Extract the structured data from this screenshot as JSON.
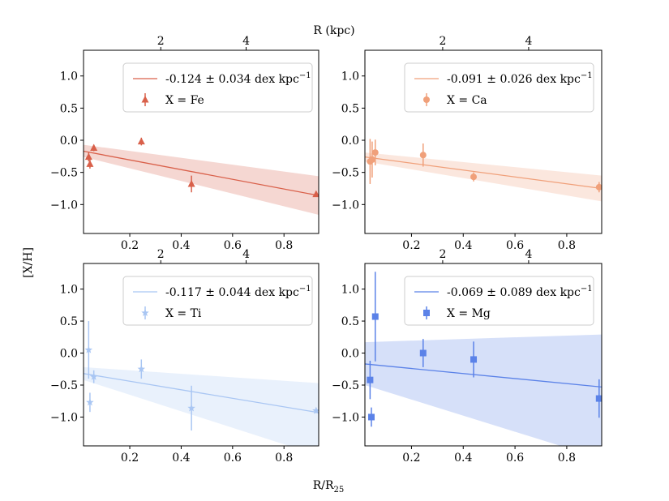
{
  "labels": {
    "top_axis_title": "R (kpc)",
    "y_axis_title": "[X/H]",
    "bottom_axis_title_main": "R/R",
    "bottom_axis_title_sub": "25"
  },
  "chart_data": [
    {
      "type": "scatter",
      "element": "Fe",
      "color": "#d9604a",
      "marker": "triangle",
      "legend_line": "-0.124 ± 0.034 dex kpc",
      "legend_marker": "X = Fe",
      "legend_exp": "−1",
      "x_range": [
        0.02,
        0.935
      ],
      "y_range": [
        -1.45,
        1.4
      ],
      "top_x_range_kpc": [
        0.19,
        5.7
      ],
      "x_ticks": [
        0.2,
        0.4,
        0.6,
        0.8
      ],
      "x_tick_labels": [
        "0.2",
        "0.4",
        "0.6",
        "0.8"
      ],
      "y_ticks": [
        1.0,
        0.5,
        0.0,
        -0.5,
        -1.0
      ],
      "y_tick_labels": [
        "1.0",
        "0.5",
        "0.0",
        "−0.5",
        "−1.0"
      ],
      "top_ticks": [
        2,
        4
      ],
      "top_tick_labels": [
        "2",
        "4"
      ],
      "fit": {
        "x": [
          0.02,
          0.935
        ],
        "y": [
          -0.17,
          -0.86
        ]
      },
      "band": {
        "upper": [
          -0.07,
          -0.56
        ],
        "lower": [
          -0.26,
          -1.16
        ]
      },
      "points": [
        {
          "x": 0.04,
          "y": -0.26,
          "err": 0.07
        },
        {
          "x": 0.045,
          "y": -0.37,
          "err": 0.07
        },
        {
          "x": 0.06,
          "y": -0.12,
          "err": 0.05
        },
        {
          "x": 0.245,
          "y": -0.02,
          "err": 0.06
        },
        {
          "x": 0.44,
          "y": -0.68,
          "err": 0.13
        },
        {
          "x": 0.925,
          "y": -0.84,
          "err": 0.04
        }
      ]
    },
    {
      "type": "scatter",
      "element": "Ca",
      "color": "#f0a07a",
      "marker": "circle",
      "legend_line": "-0.091 ± 0.026 dex kpc",
      "legend_marker": "X = Ca",
      "legend_exp": "−1",
      "x_range": [
        0.02,
        0.935
      ],
      "y_range": [
        -1.45,
        1.4
      ],
      "top_x_range_kpc": [
        0.19,
        5.7
      ],
      "x_ticks": [
        0.2,
        0.4,
        0.6,
        0.8
      ],
      "x_tick_labels": [
        "0.2",
        "0.4",
        "0.6",
        "0.8"
      ],
      "y_ticks": [
        1.0,
        0.5,
        0.0,
        -0.5,
        -1.0
      ],
      "y_tick_labels": [
        "1.0",
        "0.5",
        "0.0",
        "−0.5",
        "−1.0"
      ],
      "top_ticks": [
        2,
        4
      ],
      "top_tick_labels": [
        "2",
        "4"
      ],
      "fit": {
        "x": [
          0.02,
          0.935
        ],
        "y": [
          -0.26,
          -0.75
        ]
      },
      "band": {
        "upper": [
          -0.19,
          -0.55
        ],
        "lower": [
          -0.33,
          -0.95
        ]
      },
      "points": [
        {
          "x": 0.04,
          "y": -0.33,
          "err": 0.35
        },
        {
          "x": 0.048,
          "y": -0.3,
          "err": 0.28
        },
        {
          "x": 0.06,
          "y": -0.19,
          "err": 0.2
        },
        {
          "x": 0.245,
          "y": -0.23,
          "err": 0.18
        },
        {
          "x": 0.44,
          "y": -0.57,
          "err": 0.07
        },
        {
          "x": 0.925,
          "y": -0.73,
          "err": 0.08
        }
      ]
    },
    {
      "type": "scatter",
      "element": "Ti",
      "color": "#a9c6f3",
      "marker": "star",
      "legend_line": "-0.117 ± 0.044 dex kpc",
      "legend_marker": "X = Ti",
      "legend_exp": "−1",
      "x_range": [
        0.02,
        0.935
      ],
      "y_range": [
        -1.45,
        1.4
      ],
      "top_x_range_kpc": [
        0.19,
        5.7
      ],
      "x_ticks": [
        0.2,
        0.4,
        0.6,
        0.8
      ],
      "x_tick_labels": [
        "0.2",
        "0.4",
        "0.6",
        "0.8"
      ],
      "y_ticks": [
        1.0,
        0.5,
        0.0,
        -0.5,
        -1.0
      ],
      "y_tick_labels": [
        "1.0",
        "0.5",
        "0.0",
        "−0.5",
        "−1.0"
      ],
      "top_ticks": [
        2,
        4
      ],
      "top_tick_labels": [
        "2",
        "4"
      ],
      "fit": {
        "x": [
          0.02,
          0.935
        ],
        "y": [
          -0.32,
          -0.93
        ]
      },
      "band": {
        "upper": [
          -0.22,
          -0.47
        ],
        "lower": [
          -0.42,
          -1.6
        ]
      },
      "points": [
        {
          "x": 0.04,
          "y": 0.05,
          "err": 0.45
        },
        {
          "x": 0.045,
          "y": -0.77,
          "err": 0.15
        },
        {
          "x": 0.06,
          "y": -0.37,
          "err": 0.1
        },
        {
          "x": 0.245,
          "y": -0.25,
          "err": 0.15
        },
        {
          "x": 0.44,
          "y": -0.86,
          "err": 0.35
        },
        {
          "x": 0.925,
          "y": -0.9,
          "err": 0.04
        }
      ]
    },
    {
      "type": "scatter",
      "element": "Mg",
      "color": "#5b82e8",
      "marker": "square",
      "legend_line": "-0.069 ± 0.089 dex kpc",
      "legend_marker": "X = Mg",
      "legend_exp": "−1",
      "x_range": [
        0.02,
        0.935
      ],
      "y_range": [
        -1.45,
        1.4
      ],
      "top_x_range_kpc": [
        0.19,
        5.7
      ],
      "x_ticks": [
        0.2,
        0.4,
        0.6,
        0.8
      ],
      "x_tick_labels": [
        "0.2",
        "0.4",
        "0.6",
        "0.8"
      ],
      "y_ticks": [
        1.0,
        0.5,
        0.0,
        -0.5,
        -1.0
      ],
      "y_tick_labels": [
        "1.0",
        "0.5",
        "0.0",
        "−0.5",
        "−1.0"
      ],
      "top_ticks": [
        2,
        4
      ],
      "top_tick_labels": [
        "2",
        "4"
      ],
      "fit": {
        "x": [
          0.02,
          0.935
        ],
        "y": [
          -0.17,
          -0.53
        ]
      },
      "band": {
        "upper": [
          0.17,
          0.29
        ],
        "lower": [
          -0.5,
          -1.65
        ]
      },
      "points": [
        {
          "x": 0.04,
          "y": -0.42,
          "err": 0.3
        },
        {
          "x": 0.045,
          "y": -1.0,
          "err": 0.15
        },
        {
          "x": 0.06,
          "y": 0.57,
          "err": 0.7
        },
        {
          "x": 0.245,
          "y": 0.0,
          "err": 0.22
        },
        {
          "x": 0.44,
          "y": -0.1,
          "err": 0.28
        },
        {
          "x": 0.925,
          "y": -0.71,
          "err": 0.3
        }
      ]
    }
  ]
}
